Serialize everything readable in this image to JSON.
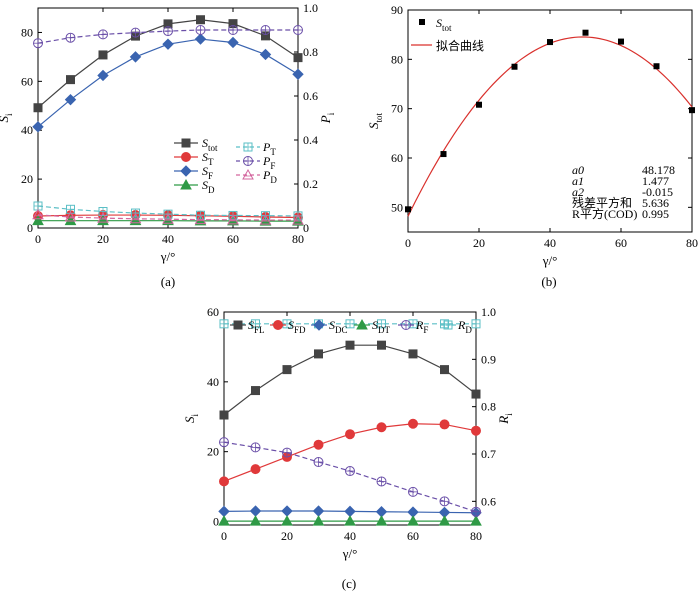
{
  "figure": {
    "panels": {
      "a": {
        "label": "(a)"
      },
      "b": {
        "label": "(b)"
      },
      "c": {
        "label": "(c)"
      }
    },
    "colors": {
      "black": "#444444",
      "red": "#e0393a",
      "blue": "#3a64b0",
      "green": "#2f9a46",
      "cyan": "#5bbfc6",
      "purple": "#6a4fa8",
      "pink": "#d3669e",
      "fit": "#d9302c"
    }
  },
  "chart_data": [
    {
      "id": "a",
      "type": "line",
      "x": [
        0,
        10,
        20,
        30,
        40,
        50,
        60,
        70,
        80
      ],
      "xlabel": "γ/°",
      "ylabel": "S",
      "ylabel_sub": "i",
      "y2label": "P",
      "y2label_sub": "i",
      "xlim": [
        0,
        80
      ],
      "ylim": [
        0,
        90
      ],
      "y2lim": [
        0,
        1.0
      ],
      "xticks": [
        0,
        20,
        40,
        60,
        80
      ],
      "yticks": [
        0,
        20,
        40,
        60,
        80
      ],
      "y2ticks": [
        0,
        0.2,
        0.4,
        0.6,
        0.8,
        1.0
      ],
      "y2ticklabels": [
        "0",
        "0.2",
        "0.4",
        "0.6",
        "0.8",
        "1.0"
      ],
      "legend_position": "lower-right",
      "series": [
        {
          "name": "S",
          "sub": "tot",
          "axis": "left",
          "color": "#444444",
          "marker": "square",
          "dashed": false,
          "values": [
            49.2,
            60.7,
            70.8,
            78.5,
            83.5,
            85.2,
            83.6,
            78.6,
            69.7
          ]
        },
        {
          "name": "S",
          "sub": "T",
          "axis": "left",
          "color": "#e0393a",
          "marker": "circle",
          "dashed": false,
          "values": [
            4.9,
            5.2,
            5.3,
            5.3,
            5.2,
            5.0,
            4.8,
            4.5,
            4.3
          ]
        },
        {
          "name": "S",
          "sub": "F",
          "axis": "left",
          "color": "#3a64b0",
          "marker": "diamond",
          "dashed": false,
          "values": [
            41.4,
            52.5,
            62.4,
            70.0,
            75.2,
            77.3,
            75.9,
            71.0,
            62.9
          ]
        },
        {
          "name": "S",
          "sub": "D",
          "axis": "left",
          "color": "#2f9a46",
          "marker": "triangle",
          "dashed": false,
          "values": [
            3.0,
            3.0,
            3.0,
            3.0,
            3.0,
            2.9,
            2.9,
            2.8,
            2.8
          ]
        },
        {
          "name": "P",
          "sub": "T",
          "axis": "right",
          "color": "#5bbfc6",
          "marker": "square-open",
          "dashed": true,
          "values": [
            0.1,
            0.085,
            0.075,
            0.068,
            0.063,
            0.058,
            0.057,
            0.056,
            0.055
          ]
        },
        {
          "name": "P",
          "sub": "F",
          "axis": "right",
          "color": "#6a4fa8",
          "marker": "circle-open",
          "dashed": true,
          "values": [
            0.84,
            0.865,
            0.88,
            0.888,
            0.895,
            0.9,
            0.9,
            0.9,
            0.9
          ]
        },
        {
          "name": "P",
          "sub": "D",
          "axis": "right",
          "color": "#d3669e",
          "marker": "triangle-open",
          "dashed": true,
          "values": [
            0.06,
            0.05,
            0.045,
            0.042,
            0.04,
            0.038,
            0.037,
            0.036,
            0.036
          ]
        }
      ]
    },
    {
      "id": "b",
      "type": "scatter",
      "x": [
        0,
        10,
        20,
        30,
        40,
        50,
        60,
        70,
        80
      ],
      "xlabel": "γ/°",
      "ylabel": "S",
      "ylabel_sub": "tot",
      "xlim": [
        0,
        80
      ],
      "ylim": [
        45,
        90
      ],
      "xticks": [
        0,
        20,
        40,
        60,
        80
      ],
      "yticks": [
        50,
        60,
        70,
        80,
        90
      ],
      "legend_position": "top-left",
      "series": [
        {
          "name": "S",
          "sub": "tot",
          "color": "#000000",
          "marker": "square",
          "values": [
            49.6,
            60.8,
            70.8,
            78.5,
            83.5,
            85.4,
            83.6,
            78.6,
            69.7
          ]
        }
      ],
      "fit": {
        "name": "拟合曲线",
        "color": "#d9302c",
        "a0": 48.178,
        "a1": 1.477,
        "a2": -0.015
      },
      "stats_table": [
        {
          "label": "a0",
          "italic": true,
          "value": "48.178"
        },
        {
          "label": "a1",
          "italic": true,
          "value": "1.477"
        },
        {
          "label": "a2",
          "italic": true,
          "value": "-0.015"
        },
        {
          "label": "残差平方和",
          "italic": false,
          "value": "5.636"
        },
        {
          "label": "R平方(COD)",
          "italic": false,
          "value": "0.995"
        }
      ]
    },
    {
      "id": "c",
      "type": "line",
      "x": [
        0,
        10,
        20,
        30,
        40,
        50,
        60,
        70,
        80
      ],
      "xlabel": "γ/°",
      "ylabel": "S",
      "ylabel_sub": "i",
      "y2label": "R",
      "y2label_sub": "i",
      "xlim": [
        0,
        80
      ],
      "ylim": [
        -1,
        60
      ],
      "y2lim": [
        0.55,
        1.0
      ],
      "xticks": [
        0,
        20,
        40,
        60,
        80
      ],
      "yticks": [
        0,
        20,
        40,
        60
      ],
      "y2ticks": [
        0.6,
        0.7,
        0.8,
        0.9,
        1.0
      ],
      "y2ticklabels": [
        "0.6",
        "0.7",
        "0.8",
        "0.9",
        "1.0"
      ],
      "legend_position": "top",
      "series": [
        {
          "name": "S",
          "sub": "FL",
          "axis": "left",
          "color": "#444444",
          "marker": "square",
          "dashed": false,
          "values": [
            30.5,
            37.5,
            43.5,
            48.0,
            50.5,
            50.5,
            48.0,
            43.5,
            36.5
          ]
        },
        {
          "name": "S",
          "sub": "FD",
          "axis": "left",
          "color": "#e0393a",
          "marker": "circle",
          "dashed": false,
          "values": [
            11.5,
            15.0,
            18.5,
            22.0,
            25.0,
            27.0,
            28.0,
            27.8,
            26.0
          ]
        },
        {
          "name": "S",
          "sub": "DC",
          "axis": "left",
          "color": "#3a64b0",
          "marker": "diamond",
          "dashed": false,
          "values": [
            2.9,
            3.0,
            3.0,
            3.0,
            2.9,
            2.8,
            2.7,
            2.6,
            2.5
          ]
        },
        {
          "name": "S",
          "sub": "DT",
          "axis": "left",
          "color": "#2f9a46",
          "marker": "triangle",
          "dashed": false,
          "values": [
            0.1,
            0.1,
            0.1,
            0.1,
            0.1,
            0.1,
            0.1,
            0.1,
            0.1
          ]
        },
        {
          "name": "R",
          "sub": "F",
          "axis": "right",
          "color": "#6a4fa8",
          "marker": "circle-open",
          "dashed": true,
          "values": [
            0.725,
            0.714,
            0.703,
            0.683,
            0.664,
            0.642,
            0.62,
            0.6,
            0.578
          ]
        },
        {
          "name": "R",
          "sub": "D",
          "axis": "right",
          "color": "#5bbfc6",
          "marker": "square-open",
          "dashed": true,
          "values": [
            0.975,
            0.975,
            0.975,
            0.975,
            0.975,
            0.975,
            0.975,
            0.975,
            0.975
          ]
        }
      ]
    }
  ]
}
